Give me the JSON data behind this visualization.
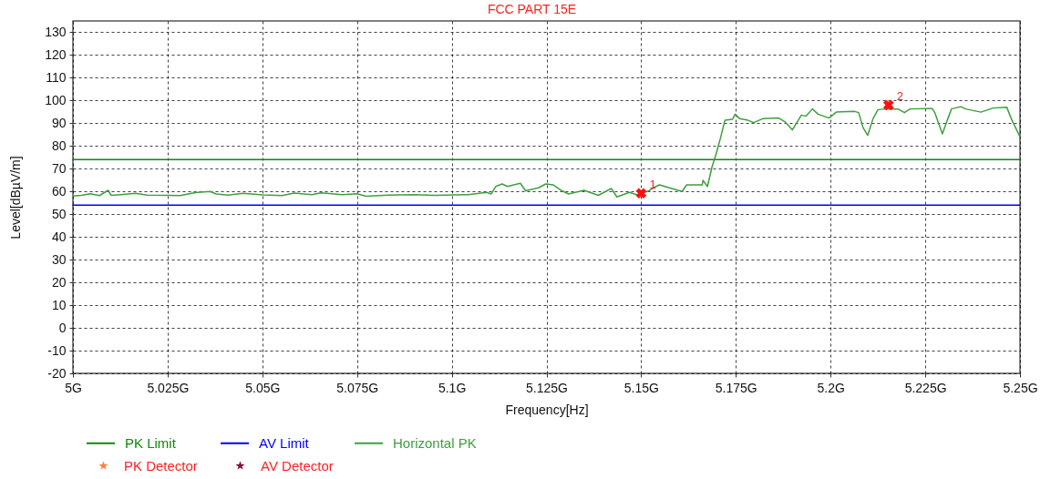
{
  "chart_data": {
    "type": "line",
    "title": "FCC  PART 15E",
    "xlabel": "Frequency[Hz]",
    "ylabel": "Level[dBµV/m]",
    "xlim": [
      5,
      5.25
    ],
    "xticks": [
      {
        "value": 5,
        "label": "5G"
      },
      {
        "value": 5.025,
        "label": "5.025G"
      },
      {
        "value": 5.05,
        "label": "5.05G"
      },
      {
        "value": 5.075,
        "label": "5.075G"
      },
      {
        "value": 5.1,
        "label": "5.1G"
      },
      {
        "value": 5.125,
        "label": "5.125G"
      },
      {
        "value": 5.15,
        "label": "5.15G"
      },
      {
        "value": 5.175,
        "label": "5.175G"
      },
      {
        "value": 5.2,
        "label": "5.2G"
      },
      {
        "value": 5.225,
        "label": "5.225G"
      },
      {
        "value": 5.25,
        "label": "5.25G"
      }
    ],
    "ylim": [
      -20,
      135
    ],
    "yticks": [
      -20,
      -10,
      0,
      10,
      20,
      30,
      40,
      50,
      60,
      70,
      80,
      90,
      100,
      110,
      120,
      130
    ],
    "grid": true,
    "legend": "bottom left",
    "series": [
      {
        "name": "PK Limit",
        "type": "line",
        "color": "#0a8a0a",
        "x": [
          5,
          5.25
        ],
        "values": [
          74,
          74
        ]
      },
      {
        "name": "AV Limit",
        "type": "line",
        "color": "#0000ff",
        "x": [
          5,
          5.25
        ],
        "values": [
          54,
          54
        ]
      },
      {
        "name": "Horizontal PK",
        "color": "#3f9f3f",
        "x": [
          5.0,
          5.0022,
          5.0046,
          5.007,
          5.0093,
          5.0101,
          5.0133,
          5.0165,
          5.0196,
          5.025,
          5.0283,
          5.0323,
          5.0362,
          5.0378,
          5.041,
          5.0449,
          5.0501,
          5.0552,
          5.0584,
          5.0631,
          5.0655,
          5.0711,
          5.075,
          5.0774,
          5.0831,
          5.09,
          5.0955,
          5.1044,
          5.1092,
          5.1104,
          5.1116,
          5.1133,
          5.1147,
          5.1181,
          5.1195,
          5.1229,
          5.1248,
          5.1268,
          5.1291,
          5.1308,
          5.1349,
          5.1387,
          5.1421,
          5.1436,
          5.1469,
          5.1493,
          5.15,
          5.152,
          5.1532,
          5.1548,
          5.1589,
          5.1608,
          5.162,
          5.1661,
          5.1663,
          5.1675,
          5.1687,
          5.1697,
          5.1709,
          5.1721,
          5.1741,
          5.1748,
          5.176,
          5.1782,
          5.1797,
          5.1821,
          5.1863,
          5.1879,
          5.1899,
          5.1923,
          5.1935,
          5.1952,
          5.1967,
          5.1996,
          5.2015,
          5.2064,
          5.2074,
          5.2086,
          5.2098,
          5.2112,
          5.2125,
          5.2147,
          5.2178,
          5.2195,
          5.221,
          5.2268,
          5.2275,
          5.2295,
          5.2319,
          5.2344,
          5.2356,
          5.2397,
          5.2429,
          5.2465,
          5.2477,
          5.25
        ],
        "values": [
          58.0,
          58.3,
          59.0,
          58.2,
          60.5,
          58.3,
          58.7,
          59.2,
          58.4,
          58.3,
          58.2,
          59.5,
          60.0,
          58.9,
          58.4,
          59.2,
          58.5,
          58.2,
          59.3,
          58.6,
          59.4,
          58.6,
          59.0,
          57.9,
          58.4,
          58.6,
          58.3,
          58.6,
          59.6,
          58.9,
          62.2,
          63.3,
          62.2,
          63.6,
          60.3,
          61.6,
          63.3,
          62.9,
          60.3,
          58.9,
          60.5,
          58.3,
          61.3,
          57.6,
          59.6,
          58.3,
          59.0,
          60.3,
          61.6,
          62.9,
          60.9,
          60.0,
          62.9,
          62.9,
          64.9,
          62.2,
          70.8,
          76.0,
          83.3,
          91.3,
          91.7,
          94.0,
          92.0,
          91.3,
          90.3,
          92.0,
          92.3,
          90.7,
          87.1,
          93.6,
          93.1,
          96.3,
          94.0,
          92.3,
          94.9,
          95.2,
          94.7,
          88.0,
          84.7,
          92.0,
          96.0,
          96.3,
          96.3,
          94.7,
          96.3,
          96.5,
          94.7,
          85.3,
          96.3,
          97.3,
          96.3,
          94.9,
          96.7,
          97.1,
          92.0,
          84.0
        ]
      },
      {
        "name": "PK Detector",
        "type": "scatter",
        "marker": "star",
        "color": "#ff8040"
      },
      {
        "name": "AV Detector",
        "type": "scatter",
        "marker": "star",
        "color": "#801040"
      },
      {
        "type": "scatter",
        "marker": "cross",
        "color": "#ff1010",
        "x": [
          5.15,
          5.2153
        ],
        "values": [
          59.2,
          98
        ]
      }
    ],
    "annotations": [
      {
        "text": "1",
        "x": 5.15,
        "y": 59.2
      },
      {
        "text": "2",
        "x": 5.2153,
        "y": 98
      }
    ]
  }
}
